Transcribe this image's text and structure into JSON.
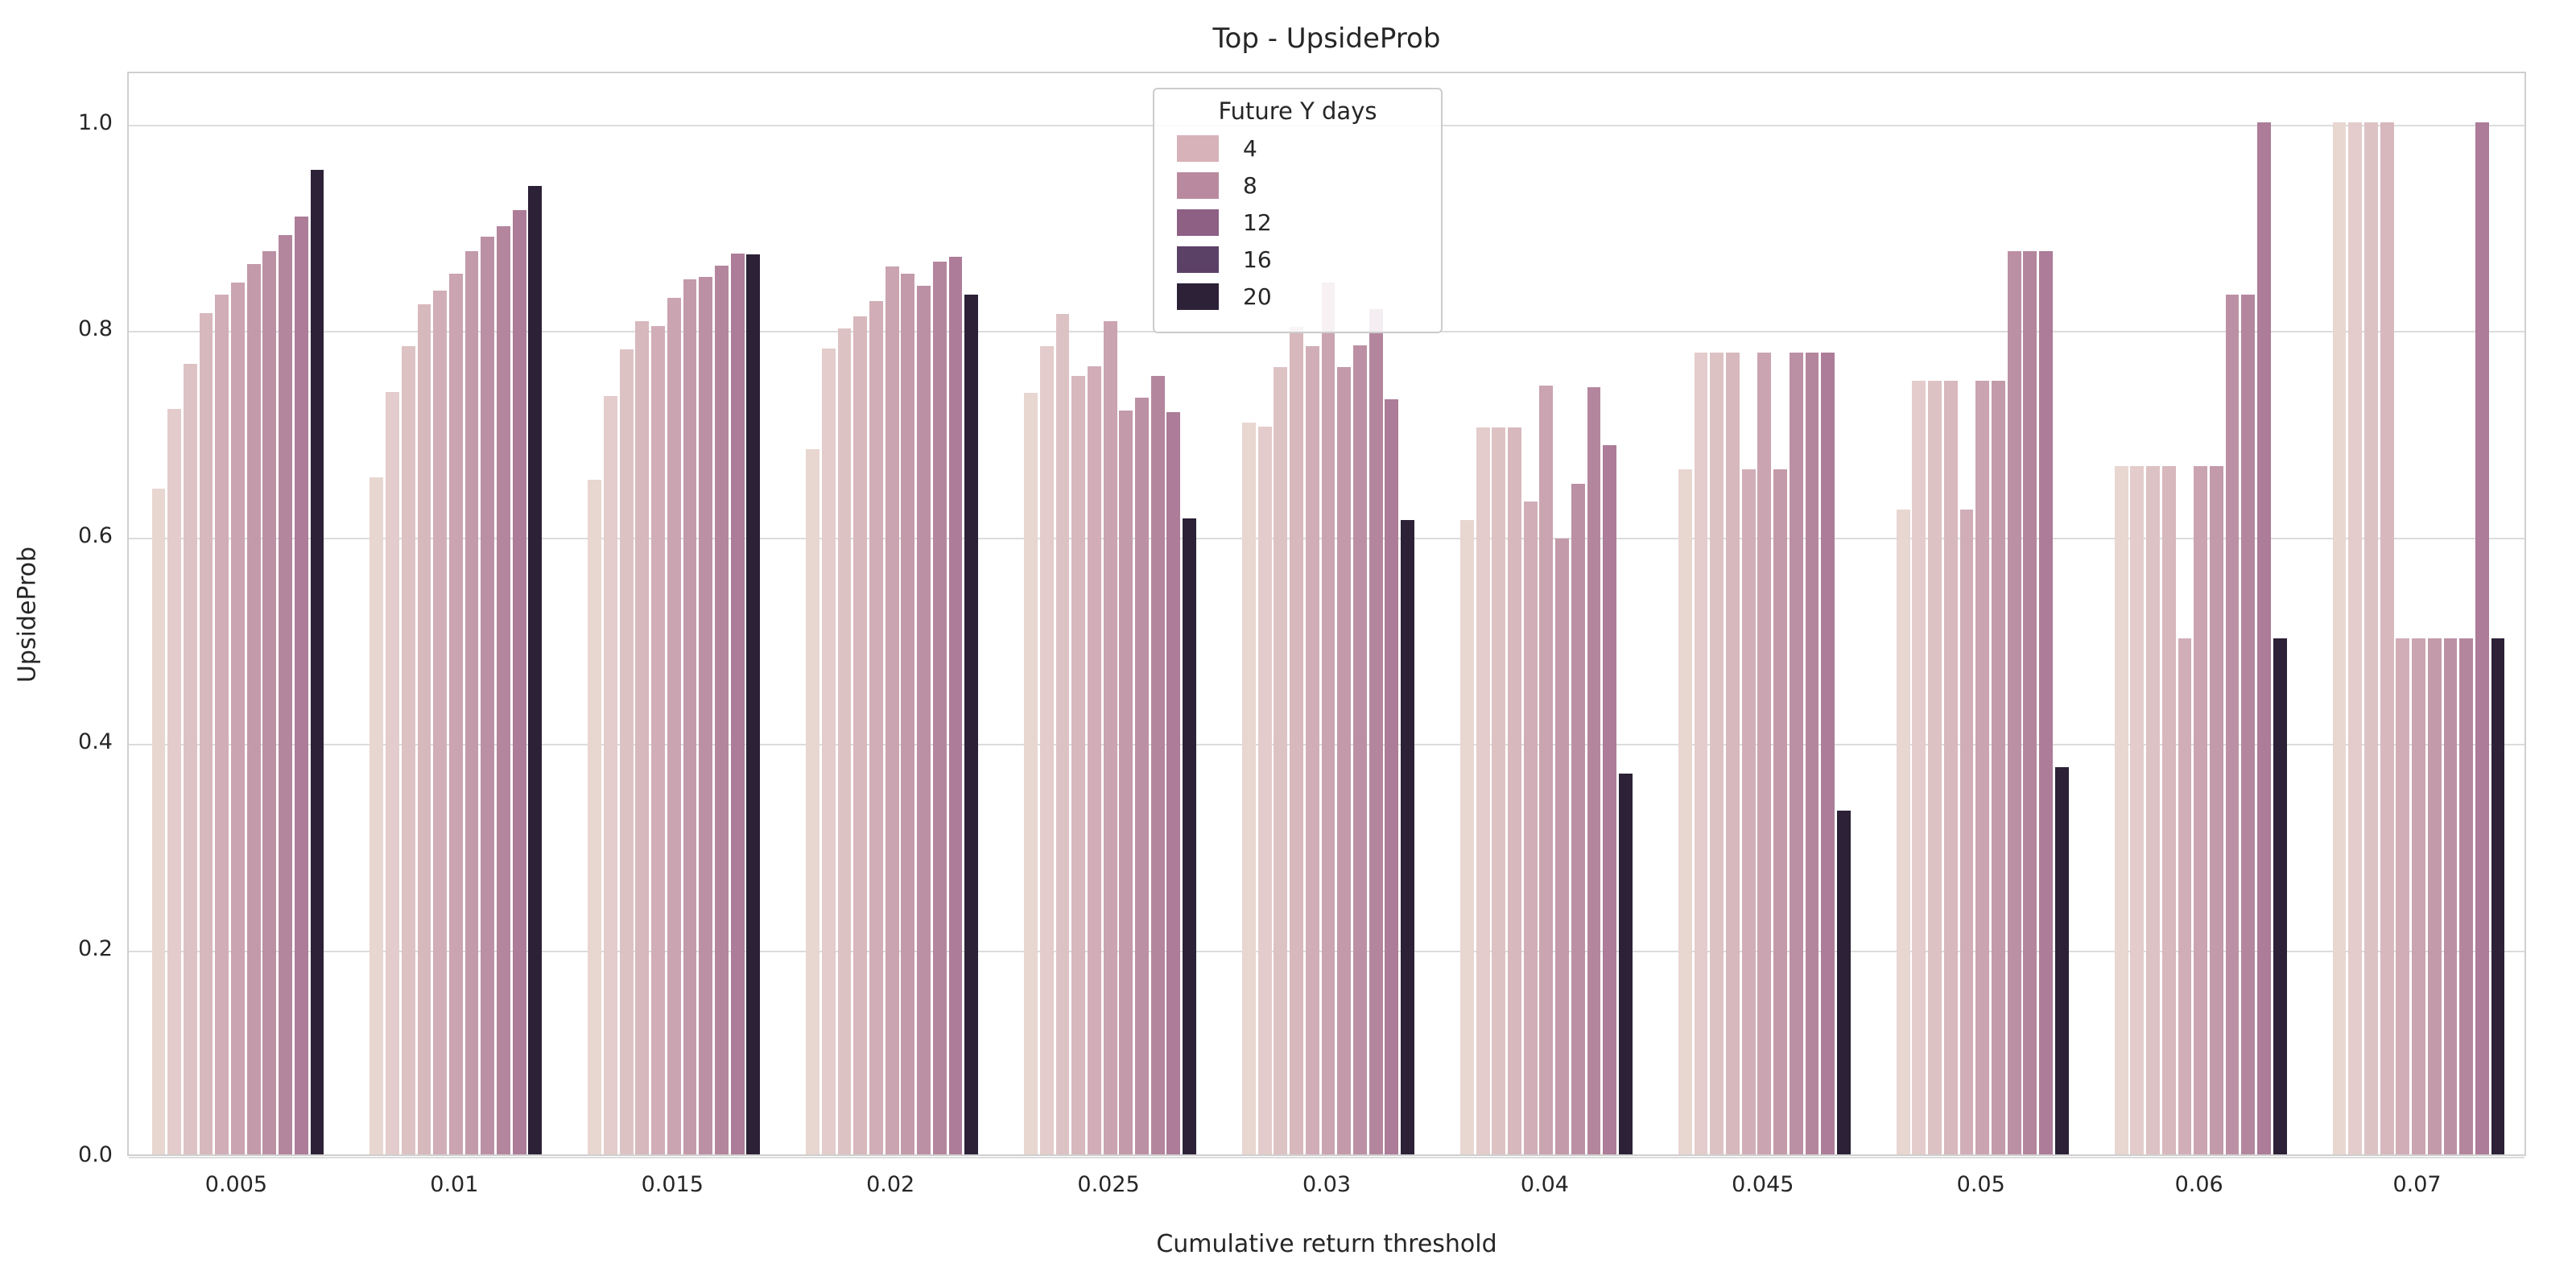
{
  "chart_data": {
    "type": "bar",
    "title": "Top - UpsideProb",
    "xlabel": "Cumulative return threshold",
    "ylabel": "UpsideProb",
    "ylim": [
      0,
      1.0507
    ],
    "yticks": [
      0.0,
      0.2,
      0.4,
      0.6,
      0.8,
      1.0
    ],
    "grid": true,
    "legend": {
      "title": "Future Y days",
      "position": "upper center",
      "entries": [
        {
          "label": "4",
          "color": "#d7b2b8"
        },
        {
          "label": "8",
          "color": "#b98a9f"
        },
        {
          "label": "12",
          "color": "#8d6084"
        },
        {
          "label": "16",
          "color": "#5c4166"
        },
        {
          "label": "20",
          "color": "#2d2138"
        }
      ]
    },
    "bars_per_group": 11,
    "bar_colors": [
      "#e8d6d1",
      "#e3cccb",
      "#ddc2c4",
      "#d7b8bd",
      "#d1aeb7",
      "#caa4b0",
      "#c39aaa",
      "#bc90a4",
      "#b4869e",
      "#ac7c98",
      "#2c2137"
    ],
    "groups": [
      {
        "threshold": "0.005",
        "values": [
          0.645,
          0.722,
          0.766,
          0.815,
          0.833,
          0.845,
          0.863,
          0.875,
          0.891,
          0.909,
          0.954
        ]
      },
      {
        "threshold": "0.01",
        "values": [
          0.656,
          0.739,
          0.783,
          0.824,
          0.837,
          0.853,
          0.875,
          0.889,
          0.899,
          0.915,
          0.938
        ]
      },
      {
        "threshold": "0.015",
        "values": [
          0.654,
          0.735,
          0.78,
          0.807,
          0.803,
          0.83,
          0.848,
          0.85,
          0.861,
          0.873,
          0.872
        ]
      },
      {
        "threshold": "0.02",
        "values": [
          0.683,
          0.781,
          0.8,
          0.812,
          0.827,
          0.86,
          0.853,
          0.842,
          0.865,
          0.87,
          0.833
        ]
      },
      {
        "threshold": "0.025",
        "values": [
          0.738,
          0.783,
          0.814,
          0.754,
          0.764,
          0.807,
          0.721,
          0.733,
          0.754,
          0.719,
          0.616
        ]
      },
      {
        "threshold": "0.03",
        "values": [
          0.709,
          0.705,
          0.763,
          0.802,
          0.783,
          0.845,
          0.763,
          0.784,
          0.819,
          0.732,
          0.615
        ]
      },
      {
        "threshold": "0.04",
        "values": [
          0.615,
          0.704,
          0.704,
          0.704,
          0.633,
          0.745,
          0.597,
          0.65,
          0.743,
          0.687,
          0.369
        ]
      },
      {
        "threshold": "0.045",
        "values": [
          0.664,
          0.777,
          0.777,
          0.777,
          0.664,
          0.777,
          0.664,
          0.777,
          0.777,
          0.777,
          0.333
        ]
      },
      {
        "threshold": "0.05",
        "values": [
          0.625,
          0.75,
          0.75,
          0.75,
          0.625,
          0.75,
          0.75,
          0.875,
          0.875,
          0.875,
          0.375
        ]
      },
      {
        "threshold": "0.06",
        "values": [
          0.667,
          0.667,
          0.667,
          0.667,
          0.5,
          0.667,
          0.667,
          0.833,
          0.833,
          1.0,
          0.5
        ]
      },
      {
        "threshold": "0.07",
        "values": [
          1.0,
          1.0,
          1.0,
          1.0,
          0.5,
          0.5,
          0.5,
          0.5,
          0.5,
          1.0,
          0.5
        ]
      }
    ]
  },
  "colors": {
    "background": "#ffffff",
    "grid": "#dcdcdc",
    "spine": "#cfcfcf",
    "text": "#262626"
  }
}
